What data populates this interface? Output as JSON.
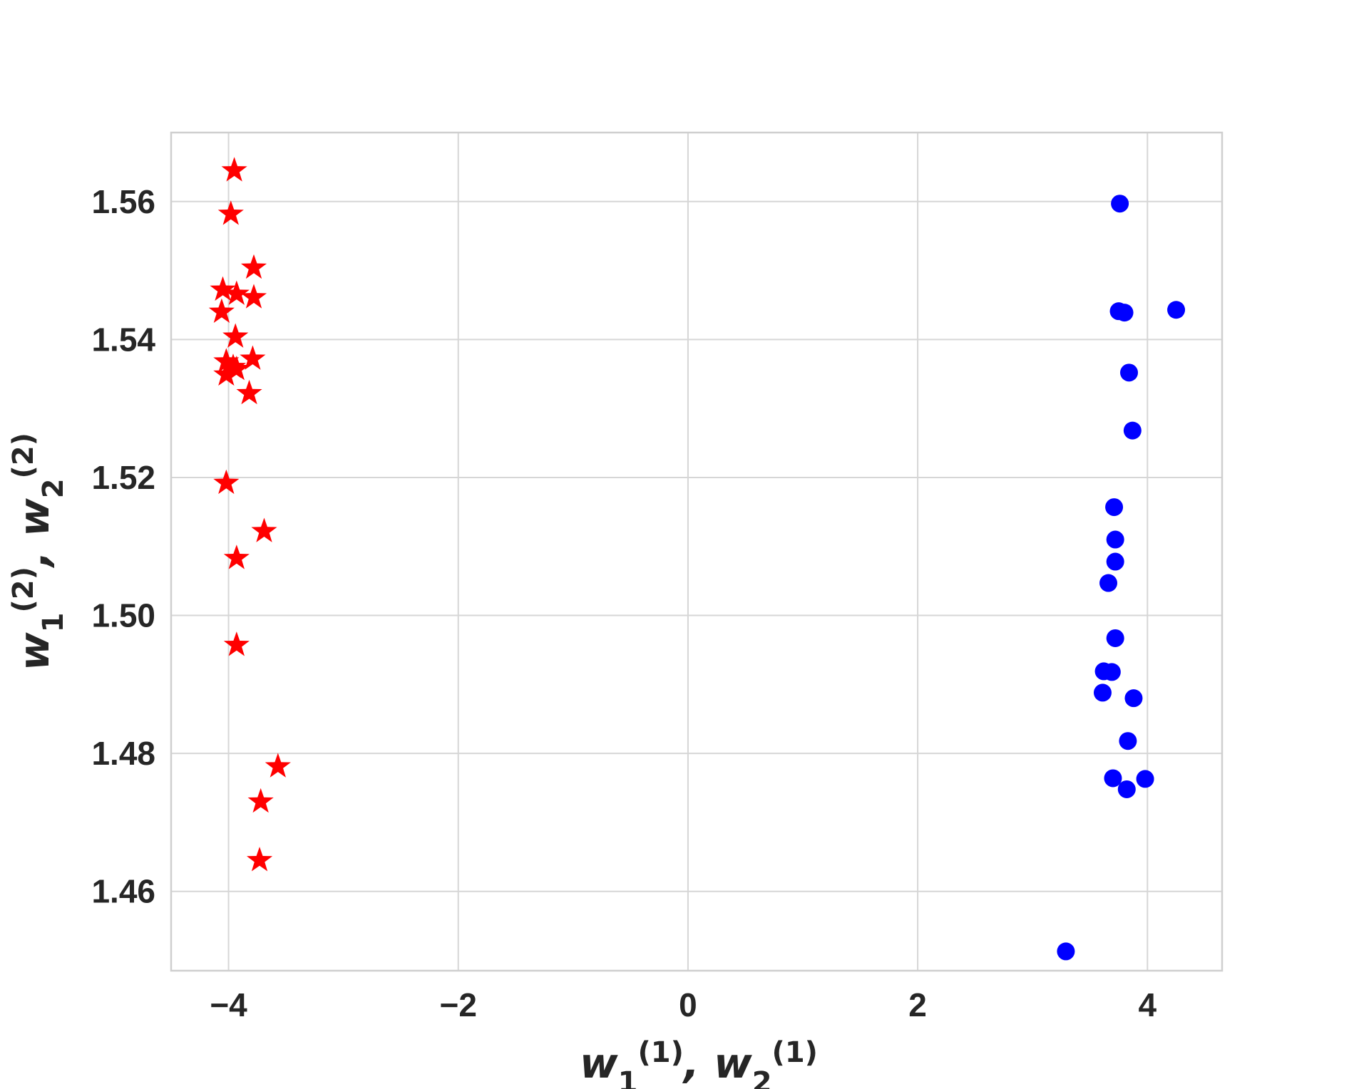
{
  "chart_data": {
    "type": "scatter",
    "title": "",
    "xlabel": "w_1^(1), w_2^(1)",
    "ylabel": "w_1^(2), w_2^(2)",
    "xlim": [
      -4.5,
      4.65
    ],
    "ylim": [
      1.4485,
      1.57
    ],
    "xticks": [
      -4,
      -2,
      0,
      2,
      4
    ],
    "xtick_labels": [
      "−4",
      "−2",
      "0",
      "2",
      "4"
    ],
    "yticks": [
      1.46,
      1.48,
      1.5,
      1.52,
      1.54,
      1.56
    ],
    "ytick_labels": [
      "1.46",
      "1.48",
      "1.50",
      "1.52",
      "1.54",
      "1.56"
    ],
    "grid": true,
    "legend": "none",
    "series": [
      {
        "marker": "star",
        "color": "#ff0000",
        "points": [
          [
            -3.95,
            1.5645
          ],
          [
            -3.98,
            1.5582
          ],
          [
            -3.78,
            1.5504
          ],
          [
            -4.05,
            1.5472
          ],
          [
            -3.93,
            1.5466
          ],
          [
            -3.78,
            1.5461
          ],
          [
            -4.06,
            1.544
          ],
          [
            -3.94,
            1.5404
          ],
          [
            -3.79,
            1.5372
          ],
          [
            -4.02,
            1.5368
          ],
          [
            -3.96,
            1.536
          ],
          [
            -3.93,
            1.5357
          ],
          [
            -4.02,
            1.5349
          ],
          [
            -3.82,
            1.5322
          ],
          [
            -4.02,
            1.5192
          ],
          [
            -3.69,
            1.5122
          ],
          [
            -3.93,
            1.5083
          ],
          [
            -3.93,
            1.4957
          ],
          [
            -3.57,
            1.4781
          ],
          [
            -3.72,
            1.473
          ],
          [
            -3.73,
            1.4645
          ]
        ]
      },
      {
        "marker": "circle",
        "color": "#0000ff",
        "points": [
          [
            3.76,
            1.5597
          ],
          [
            4.25,
            1.5443
          ],
          [
            3.75,
            1.5441
          ],
          [
            3.8,
            1.5439
          ],
          [
            3.84,
            1.5352
          ],
          [
            3.87,
            1.5268
          ],
          [
            3.71,
            1.5157
          ],
          [
            3.72,
            1.511
          ],
          [
            3.72,
            1.5078
          ],
          [
            3.66,
            1.5047
          ],
          [
            3.72,
            1.4967
          ],
          [
            3.62,
            1.4919
          ],
          [
            3.69,
            1.4918
          ],
          [
            3.61,
            1.4888
          ],
          [
            3.88,
            1.488
          ],
          [
            3.83,
            1.4818
          ],
          [
            3.7,
            1.4764
          ],
          [
            3.98,
            1.4763
          ],
          [
            3.82,
            1.4748
          ],
          [
            3.29,
            1.4513
          ]
        ]
      }
    ]
  }
}
